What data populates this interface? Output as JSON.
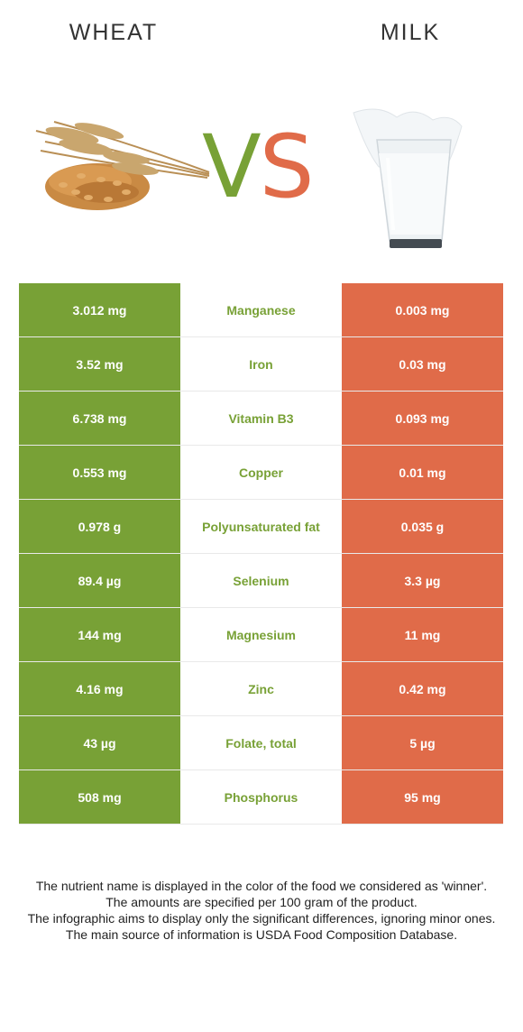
{
  "header": {
    "left_title": "WHEAT",
    "right_title": "MILK"
  },
  "vs": {
    "v": "V",
    "s": "S"
  },
  "colors": {
    "winner_left": "#78a136",
    "right": "#e06b49"
  },
  "images": {
    "left": "wheat-image",
    "right": "milk-glass-image"
  },
  "rows": [
    {
      "left": "3.012 mg",
      "nutrient": "Manganese",
      "right": "0.003 mg"
    },
    {
      "left": "3.52 mg",
      "nutrient": "Iron",
      "right": "0.03 mg"
    },
    {
      "left": "6.738 mg",
      "nutrient": "Vitamin B3",
      "right": "0.093 mg"
    },
    {
      "left": "0.553 mg",
      "nutrient": "Copper",
      "right": "0.01 mg"
    },
    {
      "left": "0.978 g",
      "nutrient": "Polyunsaturated fat",
      "right": "0.035 g"
    },
    {
      "left": "89.4 µg",
      "nutrient": "Selenium",
      "right": "3.3 µg"
    },
    {
      "left": "144 mg",
      "nutrient": "Magnesium",
      "right": "11 mg"
    },
    {
      "left": "4.16 mg",
      "nutrient": "Zinc",
      "right": "0.42 mg"
    },
    {
      "left": "43 µg",
      "nutrient": "Folate, total",
      "right": "5 µg"
    },
    {
      "left": "508 mg",
      "nutrient": "Phosphorus",
      "right": "95 mg"
    }
  ],
  "footer": [
    "The nutrient name is displayed in the color of the food we considered as 'winner'.",
    "The amounts are specified per 100 gram of the product.",
    "The infographic aims to display only the significant differences, ignoring minor ones.",
    "The main source of information is USDA Food Composition Database."
  ]
}
